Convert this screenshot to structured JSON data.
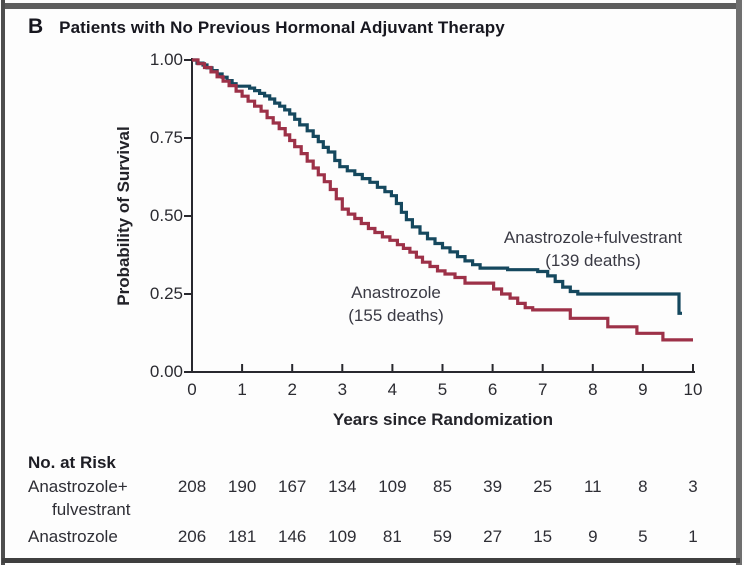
{
  "panel": {
    "letter": "B",
    "title": "Patients with No Previous Hormonal Adjuvant Therapy"
  },
  "chart_data": {
    "type": "line",
    "subtype": "kaplan-meier-step",
    "xlabel": "Years since Randomization",
    "ylabel": "Probability of Survival",
    "xlim": [
      0,
      10
    ],
    "ylim": [
      0.0,
      1.0
    ],
    "xticks": [
      "0",
      "1",
      "2",
      "3",
      "4",
      "5",
      "6",
      "7",
      "8",
      "9",
      "10"
    ],
    "yticks": [
      {
        "v": 1.0,
        "label": "1.00"
      },
      {
        "v": 0.75,
        "label": "0.75"
      },
      {
        "v": 0.5,
        "label": "0.50"
      },
      {
        "v": 0.25,
        "label": "0.25"
      },
      {
        "v": 0.0,
        "label": "0.00"
      }
    ],
    "grid": false,
    "axis_color": "#28282e",
    "series": [
      {
        "name": "Anastrozole+fulvestrant",
        "deaths": 139,
        "label_lines": [
          "Anastrozole+fulvestrant",
          "(139 deaths)"
        ],
        "color": "#15485e",
        "end_x": 9.78,
        "points": [
          [
            0,
            1.0
          ],
          [
            0.1,
            0.99
          ],
          [
            0.22,
            0.984
          ],
          [
            0.3,
            0.975
          ],
          [
            0.4,
            0.966
          ],
          [
            0.5,
            0.955
          ],
          [
            0.6,
            0.945
          ],
          [
            0.7,
            0.934
          ],
          [
            0.8,
            0.924
          ],
          [
            0.88,
            0.916
          ],
          [
            1.15,
            0.91
          ],
          [
            1.25,
            0.902
          ],
          [
            1.35,
            0.893
          ],
          [
            1.45,
            0.885
          ],
          [
            1.55,
            0.875
          ],
          [
            1.65,
            0.862
          ],
          [
            1.75,
            0.852
          ],
          [
            1.85,
            0.84
          ],
          [
            1.95,
            0.827
          ],
          [
            2.05,
            0.81
          ],
          [
            2.15,
            0.792
          ],
          [
            2.3,
            0.773
          ],
          [
            2.42,
            0.755
          ],
          [
            2.52,
            0.738
          ],
          [
            2.62,
            0.72
          ],
          [
            2.72,
            0.705
          ],
          [
            2.85,
            0.678
          ],
          [
            2.95,
            0.658
          ],
          [
            3.1,
            0.645
          ],
          [
            3.25,
            0.633
          ],
          [
            3.4,
            0.62
          ],
          [
            3.55,
            0.608
          ],
          [
            3.7,
            0.592
          ],
          [
            3.85,
            0.578
          ],
          [
            3.98,
            0.565
          ],
          [
            4.08,
            0.54
          ],
          [
            4.18,
            0.512
          ],
          [
            4.28,
            0.488
          ],
          [
            4.4,
            0.465
          ],
          [
            4.55,
            0.445
          ],
          [
            4.7,
            0.427
          ],
          [
            4.85,
            0.412
          ],
          [
            5.0,
            0.398
          ],
          [
            5.15,
            0.385
          ],
          [
            5.3,
            0.37
          ],
          [
            5.45,
            0.356
          ],
          [
            5.6,
            0.344
          ],
          [
            5.75,
            0.333
          ],
          [
            6.3,
            0.328
          ],
          [
            6.9,
            0.322
          ],
          [
            7.1,
            0.308
          ],
          [
            7.25,
            0.29
          ],
          [
            7.4,
            0.272
          ],
          [
            7.55,
            0.258
          ],
          [
            7.7,
            0.25
          ],
          [
            9.72,
            0.188
          ]
        ]
      },
      {
        "name": "Anastrozole",
        "deaths": 155,
        "label_lines": [
          "Anastrozole",
          "(155 deaths)"
        ],
        "color": "#9d3148",
        "end_x": 10.0,
        "points": [
          [
            0,
            1.0
          ],
          [
            0.12,
            0.988
          ],
          [
            0.25,
            0.976
          ],
          [
            0.38,
            0.962
          ],
          [
            0.5,
            0.946
          ],
          [
            0.62,
            0.932
          ],
          [
            0.74,
            0.918
          ],
          [
            0.88,
            0.9
          ],
          [
            1.0,
            0.884
          ],
          [
            1.12,
            0.868
          ],
          [
            1.25,
            0.852
          ],
          [
            1.38,
            0.836
          ],
          [
            1.5,
            0.815
          ],
          [
            1.62,
            0.798
          ],
          [
            1.74,
            0.78
          ],
          [
            1.86,
            0.76
          ],
          [
            1.95,
            0.742
          ],
          [
            2.05,
            0.722
          ],
          [
            2.18,
            0.7
          ],
          [
            2.3,
            0.676
          ],
          [
            2.42,
            0.654
          ],
          [
            2.52,
            0.632
          ],
          [
            2.64,
            0.61
          ],
          [
            2.76,
            0.585
          ],
          [
            2.88,
            0.555
          ],
          [
            3.0,
            0.522
          ],
          [
            3.12,
            0.506
          ],
          [
            3.25,
            0.492
          ],
          [
            3.38,
            0.476
          ],
          [
            3.52,
            0.46
          ],
          [
            3.65,
            0.447
          ],
          [
            3.8,
            0.433
          ],
          [
            3.95,
            0.422
          ],
          [
            4.1,
            0.408
          ],
          [
            4.22,
            0.396
          ],
          [
            4.35,
            0.384
          ],
          [
            4.48,
            0.368
          ],
          [
            4.6,
            0.352
          ],
          [
            4.75,
            0.338
          ],
          [
            4.9,
            0.324
          ],
          [
            5.05,
            0.314
          ],
          [
            5.25,
            0.303
          ],
          [
            5.45,
            0.285
          ],
          [
            6.02,
            0.266
          ],
          [
            6.18,
            0.25
          ],
          [
            6.35,
            0.237
          ],
          [
            6.5,
            0.22
          ],
          [
            6.65,
            0.206
          ],
          [
            6.8,
            0.199
          ],
          [
            7.55,
            0.172
          ],
          [
            8.3,
            0.145
          ],
          [
            8.88,
            0.124
          ],
          [
            9.4,
            0.103
          ]
        ]
      }
    ]
  },
  "risk_table": {
    "header": "No. at Risk",
    "rows": [
      {
        "label_lines": [
          "Anastrozole+",
          "fulvestrant"
        ],
        "values": [
          208,
          190,
          167,
          134,
          109,
          85,
          39,
          25,
          11,
          8,
          3
        ]
      },
      {
        "label_lines": [
          "Anastrozole"
        ],
        "values": [
          206,
          181,
          146,
          109,
          81,
          59,
          27,
          15,
          9,
          5,
          1
        ]
      }
    ]
  }
}
